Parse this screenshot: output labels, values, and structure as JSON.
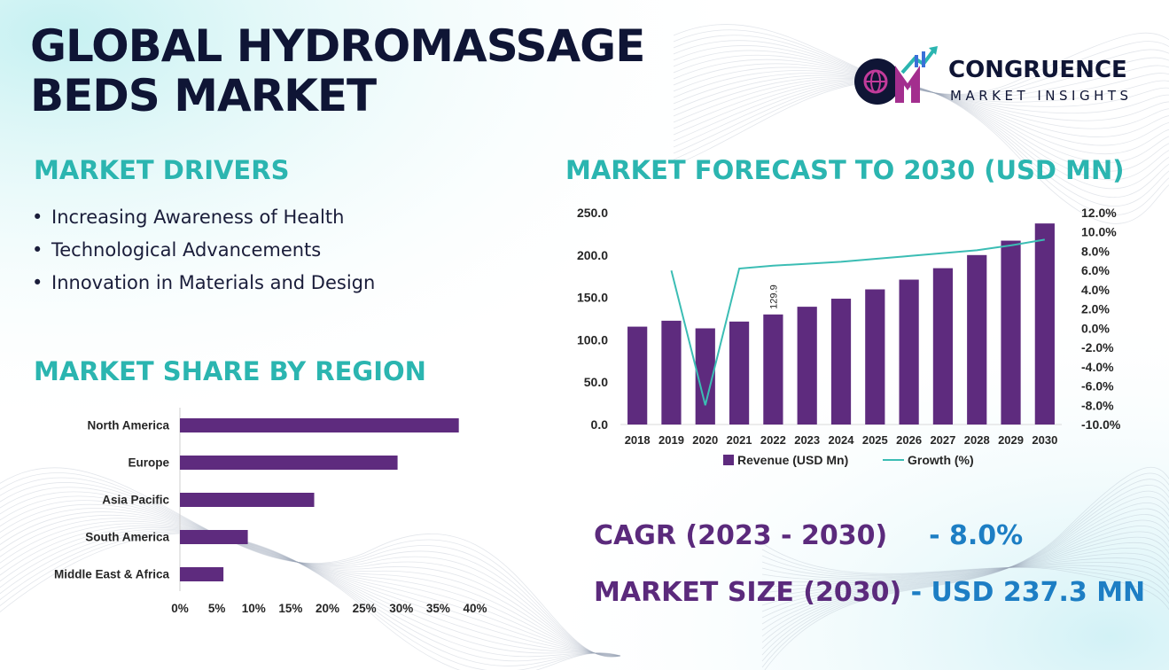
{
  "header": {
    "title_line1": "GLOBAL HYDROMASSAGE",
    "title_line2": "BEDS MARKET"
  },
  "logo": {
    "name": "CONGRUENCE",
    "tagline": "MARKET INSIGHTS",
    "monogram": "CM"
  },
  "drivers": {
    "heading": "MARKET DRIVERS",
    "items": [
      "Increasing Awareness of Health",
      "Technological Advancements",
      "Innovation in Materials and Design"
    ]
  },
  "region": {
    "heading": "MARKET SHARE BY REGION"
  },
  "forecast": {
    "heading": "MARKET FORECAST TO 2030 (USD MN)"
  },
  "summary": {
    "cagr_label": "CAGR (2023 - 2030)",
    "cagr_value": "- 8.0%",
    "size_label": "MARKET SIZE (2030)",
    "size_value": "- USD 237.3 MN"
  },
  "colors": {
    "bar": "#5e2b7e",
    "line": "#3bbdb4",
    "heading": "#2bb5b0",
    "title": "#0f1535",
    "summary_label": "#5b2a7c",
    "summary_value": "#1d7ec4"
  },
  "chart_data": [
    {
      "type": "bar",
      "orientation": "horizontal",
      "categories": [
        "North America",
        "Europe",
        "Asia Pacific",
        "South America",
        "Middle East & Africa"
      ],
      "values": [
        37.8,
        29.5,
        18.2,
        9.2,
        5.9
      ],
      "xlim": [
        0,
        40
      ],
      "xticks": [
        "0%",
        "5%",
        "10%",
        "15%",
        "20%",
        "25%",
        "30%",
        "35%",
        "40%"
      ],
      "xtick_values": [
        0,
        5,
        10,
        15,
        20,
        25,
        30,
        35,
        40
      ],
      "grid": false
    },
    {
      "type": "bar",
      "categories": [
        "2018",
        "2019",
        "2020",
        "2021",
        "2022",
        "2023",
        "2024",
        "2025",
        "2026",
        "2027",
        "2028",
        "2029",
        "2030"
      ],
      "series": [
        {
          "name": "Revenue (USD Mn)",
          "type": "bar",
          "axis": "left",
          "values": [
            115.5,
            122.5,
            113.5,
            121.5,
            129.9,
            139.0,
            148.5,
            159.5,
            171.0,
            184.5,
            200.0,
            217.0,
            237.3
          ]
        },
        {
          "name": "Growth (%)",
          "type": "line",
          "axis": "right",
          "values": [
            null,
            6.0,
            -8.0,
            6.2,
            6.5,
            6.7,
            6.9,
            7.2,
            7.5,
            7.8,
            8.1,
            8.6,
            9.2
          ]
        }
      ],
      "ylim": [
        0,
        250
      ],
      "yticks": [
        "0.0",
        "50.0",
        "100.0",
        "150.0",
        "200.0",
        "250.0"
      ],
      "ytick_values": [
        0,
        50,
        100,
        150,
        200,
        250
      ],
      "y2lim": [
        -10,
        12
      ],
      "y2ticks": [
        "-10.0%",
        "-8.0%",
        "-6.0%",
        "-4.0%",
        "-2.0%",
        "0.0%",
        "2.0%",
        "4.0%",
        "6.0%",
        "8.0%",
        "10.0%",
        "12.0%"
      ],
      "y2tick_values": [
        -10,
        -8,
        -6,
        -4,
        -2,
        0,
        2,
        4,
        6,
        8,
        10,
        12
      ],
      "data_labels": [
        {
          "category": "2022",
          "text": "129.9"
        }
      ],
      "legend": "bottom",
      "grid": false
    }
  ]
}
